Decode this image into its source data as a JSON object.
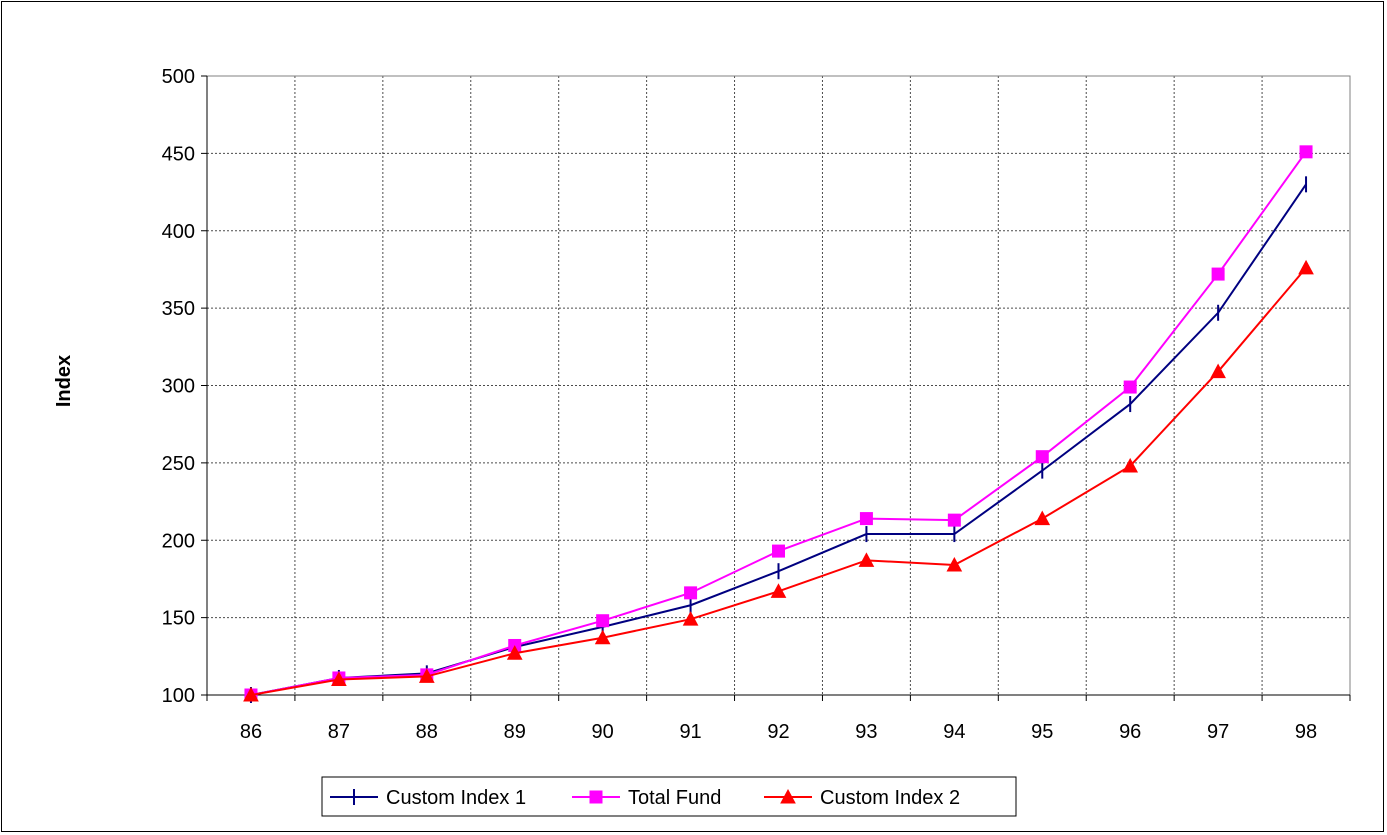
{
  "chart_data": {
    "type": "line",
    "title": "",
    "xlabel": "",
    "ylabel": "Index",
    "categories": [
      "86",
      "87",
      "88",
      "89",
      "90",
      "91",
      "92",
      "93",
      "94",
      "95",
      "96",
      "97",
      "98"
    ],
    "ylim": [
      100,
      500
    ],
    "yticks": [
      "100",
      "150",
      "200",
      "250",
      "300",
      "350",
      "400",
      "450",
      "500"
    ],
    "grid": true,
    "legend_position": "bottom",
    "series": [
      {
        "name": "Custom Index 1",
        "color": "#000080",
        "marker": "plus",
        "values": [
          100,
          111,
          114,
          131,
          144,
          158,
          180,
          204,
          204,
          245,
          288,
          347,
          430
        ]
      },
      {
        "name": "Total Fund",
        "color": "#ff00ff",
        "marker": "square",
        "values": [
          100,
          111,
          113,
          132,
          148,
          166,
          193,
          214,
          213,
          254,
          299,
          372,
          451
        ]
      },
      {
        "name": "Custom Index 2",
        "color": "#ff0000",
        "marker": "triangle",
        "values": [
          100,
          110,
          112,
          127,
          137,
          149,
          167,
          187,
          184,
          214,
          248,
          309,
          376
        ]
      }
    ]
  }
}
